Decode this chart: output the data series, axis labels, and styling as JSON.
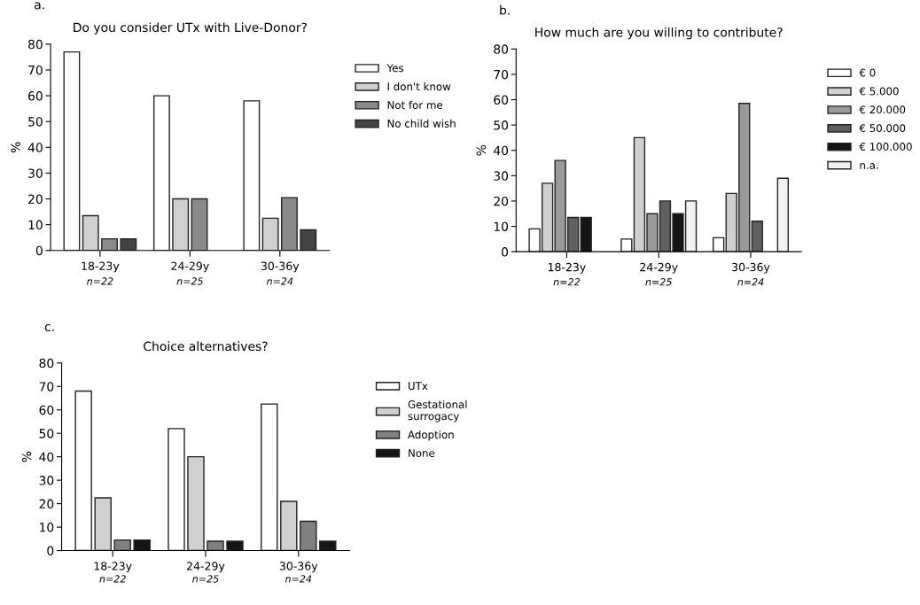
{
  "chart_data": [
    {
      "type": "bar",
      "title": "Do you consider UTx with Live-Donor?",
      "ylabel": "%",
      "categories": [
        "18-23y",
        "24-29y",
        "30-36y"
      ],
      "annotations": [
        "a.",
        "n=22",
        "n=25",
        "n=24"
      ],
      "ylim": [
        0,
        80
      ],
      "yticks": [
        0,
        10,
        20,
        30,
        40,
        50,
        60,
        70,
        80
      ],
      "legend": "right",
      "grid": false,
      "series": [
        {
          "name": "Yes",
          "color": "#ffffff",
          "values": [
            77,
            60,
            58
          ]
        },
        {
          "name": "I don't know",
          "color": "#d0d0d0",
          "values": [
            13.5,
            20,
            12.5
          ]
        },
        {
          "name": "Not for me",
          "color": "#8a8a8a",
          "values": [
            4.5,
            20,
            20.5
          ]
        },
        {
          "name": "No child wish",
          "color": "#444444",
          "values": [
            4.5,
            null,
            8
          ]
        }
      ]
    },
    {
      "type": "bar",
      "title": "How much are you willing to contribute?",
      "ylabel": "%",
      "categories": [
        "18-23y",
        "24-29y",
        "30-36y"
      ],
      "annotations": [
        "b.",
        "n=22",
        "n=25",
        "n=24"
      ],
      "ylim": [
        0,
        80
      ],
      "yticks": [
        0,
        10,
        20,
        30,
        40,
        50,
        60,
        70,
        80
      ],
      "legend": "right",
      "grid": false,
      "series": [
        {
          "name": "€ 0",
          "color": "#ffffff",
          "values": [
            9,
            5,
            5.5
          ]
        },
        {
          "name": "€ 5.000",
          "color": "#d0d0d0",
          "values": [
            27,
            45,
            23
          ]
        },
        {
          "name": "€ 20.000",
          "color": "#9a9a9a",
          "values": [
            36,
            15,
            58.5
          ]
        },
        {
          "name": "€ 50.000",
          "color": "#606060",
          "values": [
            13.5,
            20,
            12
          ]
        },
        {
          "name": "€ 100.000",
          "color": "#151515",
          "values": [
            13.5,
            15,
            null
          ]
        },
        {
          "name": "n.a.",
          "color": "#f2f2f2",
          "values": [
            null,
            20,
            29
          ]
        }
      ]
    },
    {
      "type": "bar",
      "title": "Choice alternatives?",
      "ylabel": "%",
      "categories": [
        "18-23y",
        "24-29y",
        "30-36y"
      ],
      "annotations": [
        "c.",
        "n=22",
        "n=25",
        "n=24"
      ],
      "ylim": [
        0,
        80
      ],
      "yticks": [
        0,
        10,
        20,
        30,
        40,
        50,
        60,
        70,
        80
      ],
      "legend": "right",
      "grid": false,
      "series": [
        {
          "name": "UTx",
          "color": "#ffffff",
          "values": [
            68,
            52,
            62.5
          ]
        },
        {
          "name": "Gestational\nsurrogacy",
          "color": "#d0d0d0",
          "values": [
            22.5,
            40,
            21
          ]
        },
        {
          "name": "Adoption",
          "color": "#808080",
          "values": [
            4.5,
            4,
            12.5
          ]
        },
        {
          "name": "None",
          "color": "#151515",
          "values": [
            4.5,
            4,
            4
          ]
        }
      ]
    }
  ]
}
